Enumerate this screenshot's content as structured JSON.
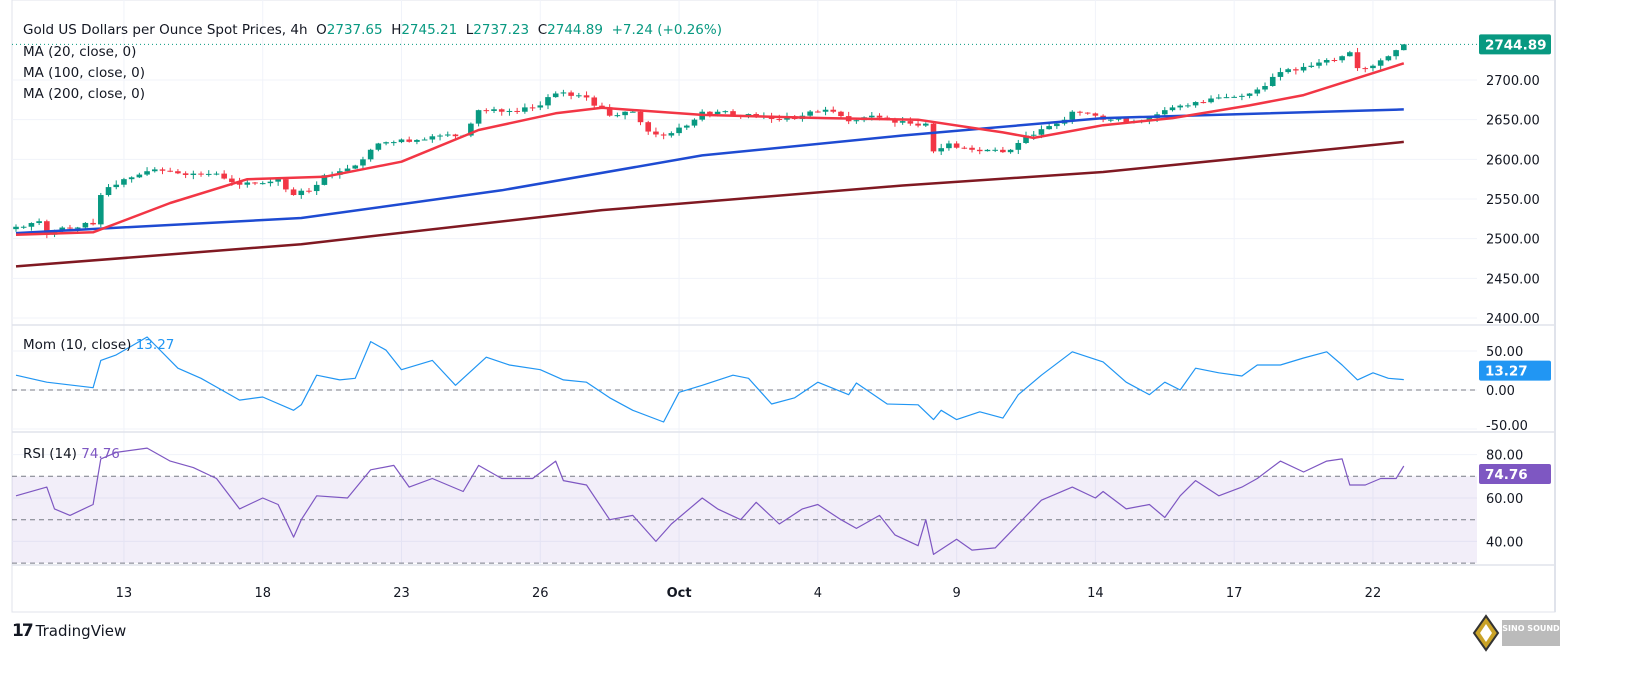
{
  "header": {
    "symbol": "Gold US Dollars per Ounce Spot Prices, 4h",
    "o_label": "O",
    "o": "2737.65",
    "h_label": "H",
    "h": "2745.21",
    "l_label": "L",
    "l": "2737.23",
    "c_label": "C",
    "c": "2744.89",
    "change": "+7.24 (+0.26%)"
  },
  "indicators": {
    "ma20": "MA (20, close, 0)",
    "ma100": "MA (100, close, 0)",
    "ma200": "MA (200, close, 0)",
    "mom": "Mom (10, close)",
    "mom_value": "13.27",
    "rsi": "RSI (14)",
    "rsi_value": "74.76"
  },
  "branding": {
    "tradingview": "TradingView",
    "watermark": "SINO SOUND"
  },
  "colors": {
    "up": "#089981",
    "down": "#F23645",
    "ma20": "#F23645",
    "ma100": "#1E4BD2",
    "ma200": "#801922",
    "mom": "#2196F3",
    "rsi": "#7E57C2"
  },
  "chart_data": [
    {
      "type": "candlestick",
      "title": "Gold US Dollars per Ounce Spot Prices, 4h",
      "bars": 181,
      "ylim": [
        2390,
        2760
      ],
      "yticks": [
        "2400.00",
        "2450.00",
        "2500.00",
        "2550.00",
        "2600.00",
        "2650.00",
        "2700.00"
      ],
      "last_price": "2744.89",
      "x_ticks": [
        {
          "label": "13",
          "bar": 14
        },
        {
          "label": "18",
          "bar": 32
        },
        {
          "label": "23",
          "bar": 50
        },
        {
          "label": "26",
          "bar": 68
        },
        {
          "label": "Oct",
          "bar": 86
        },
        {
          "label": "4",
          "bar": 104
        },
        {
          "label": "9",
          "bar": 122
        },
        {
          "label": "14",
          "bar": 140
        },
        {
          "label": "17",
          "bar": 158
        },
        {
          "label": "22",
          "bar": 176
        }
      ],
      "close_keypoints": [
        [
          0,
          2515
        ],
        [
          3,
          2522
        ],
        [
          4,
          2505
        ],
        [
          6,
          2514
        ],
        [
          10,
          2518
        ],
        [
          11,
          2555
        ],
        [
          12,
          2565
        ],
        [
          14,
          2575
        ],
        [
          17,
          2585
        ],
        [
          20,
          2585
        ],
        [
          23,
          2582
        ],
        [
          26,
          2582
        ],
        [
          29,
          2568
        ],
        [
          32,
          2570
        ],
        [
          34,
          2575
        ],
        [
          36,
          2555
        ],
        [
          38,
          2560
        ],
        [
          40,
          2580
        ],
        [
          42,
          2585
        ],
        [
          45,
          2600
        ],
        [
          47,
          2620
        ],
        [
          50,
          2625
        ],
        [
          53,
          2625
        ],
        [
          55,
          2630
        ],
        [
          58,
          2630
        ],
        [
          59,
          2645
        ],
        [
          60,
          2662
        ],
        [
          63,
          2660
        ],
        [
          65,
          2660
        ],
        [
          68,
          2668
        ],
        [
          70,
          2683
        ],
        [
          72,
          2680
        ],
        [
          74,
          2678
        ],
        [
          77,
          2655
        ],
        [
          79,
          2660
        ],
        [
          80,
          2660
        ],
        [
          82,
          2635
        ],
        [
          84,
          2630
        ],
        [
          86,
          2640
        ],
        [
          88,
          2650
        ],
        [
          89,
          2660
        ],
        [
          91,
          2660
        ],
        [
          94,
          2655
        ],
        [
          97,
          2655
        ],
        [
          99,
          2650
        ],
        [
          102,
          2655
        ],
        [
          104,
          2660
        ],
        [
          106,
          2660
        ],
        [
          108,
          2648
        ],
        [
          111,
          2655
        ],
        [
          113,
          2650
        ],
        [
          116,
          2645
        ],
        [
          118,
          2645
        ],
        [
          119,
          2610
        ],
        [
          121,
          2620
        ],
        [
          124,
          2612
        ],
        [
          127,
          2612
        ],
        [
          129,
          2612
        ],
        [
          131,
          2630
        ],
        [
          133,
          2638
        ],
        [
          135,
          2645
        ],
        [
          137,
          2660
        ],
        [
          140,
          2655
        ],
        [
          142,
          2650
        ],
        [
          145,
          2648
        ],
        [
          147,
          2652
        ],
        [
          149,
          2662
        ],
        [
          152,
          2668
        ],
        [
          154,
          2672
        ],
        [
          156,
          2678
        ],
        [
          159,
          2680
        ],
        [
          161,
          2688
        ],
        [
          164,
          2710
        ],
        [
          166,
          2712
        ],
        [
          169,
          2722
        ],
        [
          172,
          2730
        ],
        [
          173,
          2735
        ],
        [
          174,
          2715
        ],
        [
          176,
          2718
        ],
        [
          178,
          2730
        ],
        [
          179,
          2737.65
        ],
        [
          180,
          2744.89
        ]
      ],
      "ma20": [
        [
          0,
          2505
        ],
        [
          10,
          2508
        ],
        [
          20,
          2545
        ],
        [
          30,
          2575
        ],
        [
          40,
          2578
        ],
        [
          50,
          2597
        ],
        [
          60,
          2637
        ],
        [
          70,
          2658
        ],
        [
          76,
          2665
        ],
        [
          89,
          2656
        ],
        [
          105,
          2652
        ],
        [
          117,
          2650
        ],
        [
          128,
          2634
        ],
        [
          132,
          2627
        ],
        [
          141,
          2643
        ],
        [
          150,
          2652
        ],
        [
          160,
          2668
        ],
        [
          167,
          2681
        ],
        [
          180,
          2721
        ]
      ],
      "ma100": [
        [
          0,
          2507
        ],
        [
          37,
          2526
        ],
        [
          63,
          2561
        ],
        [
          89,
          2605
        ],
        [
          115,
          2630
        ],
        [
          141,
          2652
        ],
        [
          180,
          2663
        ]
      ],
      "ma200": [
        [
          0,
          2465
        ],
        [
          37,
          2493
        ],
        [
          76,
          2536
        ],
        [
          115,
          2567
        ],
        [
          141,
          2584
        ],
        [
          180,
          2622
        ]
      ]
    },
    {
      "type": "line",
      "title": "Mom (10, close)",
      "ylim": [
        -52,
        83
      ],
      "yticks": [
        "-50.00",
        "0.00",
        "50.00"
      ],
      "last_value": "13.27",
      "points": [
        [
          0,
          19
        ],
        [
          4,
          10
        ],
        [
          10,
          3
        ],
        [
          11,
          38
        ],
        [
          13,
          45
        ],
        [
          17,
          68
        ],
        [
          21,
          28
        ],
        [
          24,
          15
        ],
        [
          29,
          -13
        ],
        [
          32,
          -9
        ],
        [
          36,
          -26
        ],
        [
          37,
          -19
        ],
        [
          39,
          19
        ],
        [
          42,
          13
        ],
        [
          44,
          15
        ],
        [
          46,
          62
        ],
        [
          48,
          51
        ],
        [
          50,
          26
        ],
        [
          54,
          38
        ],
        [
          57,
          6
        ],
        [
          61,
          42
        ],
        [
          64,
          32
        ],
        [
          68,
          26
        ],
        [
          71,
          13
        ],
        [
          74,
          10
        ],
        [
          77,
          -10
        ],
        [
          80,
          -26
        ],
        [
          84,
          -41
        ],
        [
          86,
          -3
        ],
        [
          89,
          6
        ],
        [
          93,
          19
        ],
        [
          95,
          15
        ],
        [
          98,
          -18
        ],
        [
          101,
          -10
        ],
        [
          104,
          10
        ],
        [
          108,
          -6
        ],
        [
          109,
          9
        ],
        [
          113,
          -18
        ],
        [
          117,
          -19
        ],
        [
          119,
          -38
        ],
        [
          120,
          -26
        ],
        [
          122,
          -38
        ],
        [
          125,
          -28
        ],
        [
          128,
          -36
        ],
        [
          130,
          -6
        ],
        [
          133,
          19
        ],
        [
          137,
          49
        ],
        [
          141,
          36
        ],
        [
          144,
          10
        ],
        [
          147,
          -6
        ],
        [
          149,
          10
        ],
        [
          151,
          0
        ],
        [
          153,
          28
        ],
        [
          156,
          22
        ],
        [
          159,
          18
        ],
        [
          161,
          32
        ],
        [
          164,
          32
        ],
        [
          167,
          41
        ],
        [
          170,
          49
        ],
        [
          172,
          32
        ],
        [
          174,
          13
        ],
        [
          176,
          22
        ],
        [
          178,
          15
        ],
        [
          180,
          13.27
        ]
      ]
    },
    {
      "type": "line",
      "title": "RSI (14)",
      "ylim": [
        29,
        84
      ],
      "yticks": [
        "40.00",
        "60.00",
        "80.00"
      ],
      "bands": [
        30,
        50,
        70
      ],
      "last_value": "74.76",
      "points": [
        [
          0,
          61
        ],
        [
          4,
          65
        ],
        [
          5,
          55
        ],
        [
          7,
          52
        ],
        [
          10,
          57
        ],
        [
          11,
          78
        ],
        [
          13,
          81
        ],
        [
          17,
          83
        ],
        [
          20,
          77
        ],
        [
          23,
          74
        ],
        [
          26,
          69
        ],
        [
          29,
          55
        ],
        [
          32,
          60
        ],
        [
          34,
          57
        ],
        [
          36,
          42
        ],
        [
          37,
          50
        ],
        [
          39,
          61
        ],
        [
          43,
          60
        ],
        [
          46,
          73
        ],
        [
          49,
          75
        ],
        [
          51,
          65
        ],
        [
          54,
          69
        ],
        [
          58,
          63
        ],
        [
          60,
          75
        ],
        [
          63,
          69
        ],
        [
          67,
          69
        ],
        [
          70,
          77
        ],
        [
          71,
          68
        ],
        [
          74,
          66
        ],
        [
          77,
          50
        ],
        [
          80,
          52
        ],
        [
          83,
          40
        ],
        [
          85,
          48
        ],
        [
          89,
          60
        ],
        [
          91,
          55
        ],
        [
          94,
          50
        ],
        [
          96,
          58
        ],
        [
          99,
          48
        ],
        [
          102,
          55
        ],
        [
          104,
          57
        ],
        [
          107,
          50
        ],
        [
          109,
          46
        ],
        [
          112,
          52
        ],
        [
          114,
          43
        ],
        [
          117,
          38
        ],
        [
          118,
          50
        ],
        [
          119,
          34
        ],
        [
          122,
          41
        ],
        [
          124,
          36
        ],
        [
          127,
          37
        ],
        [
          130,
          48
        ],
        [
          133,
          59
        ],
        [
          137,
          65
        ],
        [
          140,
          60
        ],
        [
          141,
          63
        ],
        [
          144,
          55
        ],
        [
          147,
          57
        ],
        [
          149,
          51
        ],
        [
          151,
          61
        ],
        [
          153,
          68
        ],
        [
          156,
          61
        ],
        [
          159,
          65
        ],
        [
          161,
          69
        ],
        [
          164,
          77
        ],
        [
          167,
          72
        ],
        [
          170,
          77
        ],
        [
          172,
          78
        ],
        [
          173,
          66
        ],
        [
          175,
          66
        ],
        [
          177,
          69
        ],
        [
          179,
          69
        ],
        [
          180,
          74.76
        ]
      ]
    }
  ]
}
